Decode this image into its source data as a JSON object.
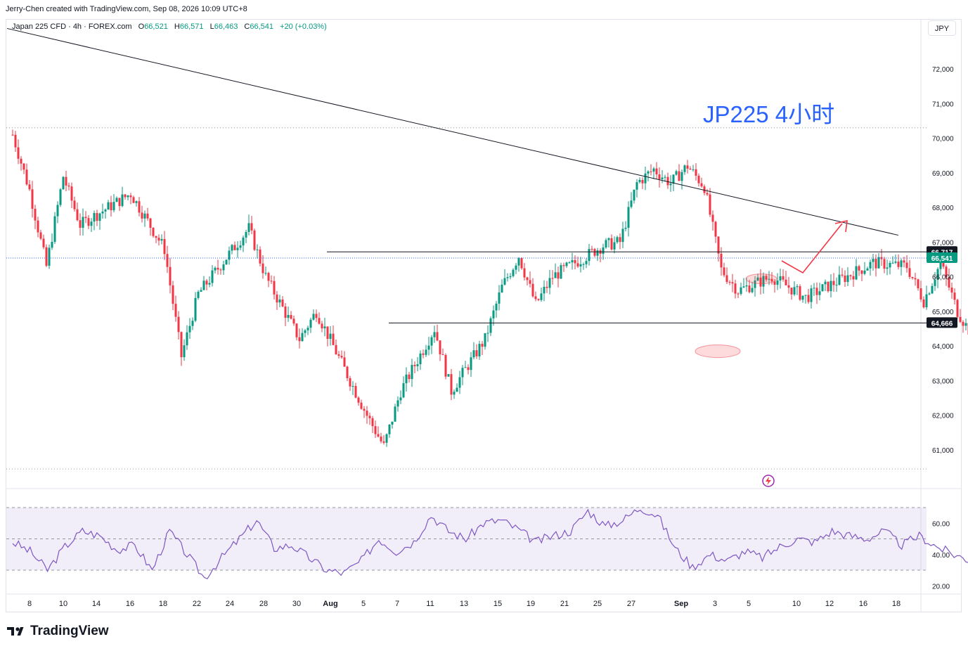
{
  "credit": "Jerry-Chen created with TradingView.com, Sep 08, 2026 10:09 UTC+8",
  "legend": {
    "symbol": "Japan 225 CFD · 4h · FOREX.com",
    "open_label": "O",
    "open": "66,521",
    "high_label": "H",
    "high": "66,571",
    "low_label": "L",
    "low": "66,463",
    "close_label": "C",
    "close": "66,541",
    "change": "+20 (+0.03%)"
  },
  "currency_button": "JPY",
  "annotation": "JP225 4小时",
  "brand": "TradingView",
  "colors": {
    "up": "#089981",
    "down": "#f23645",
    "rsi": "#7e57c2",
    "annotation": "#2962ff",
    "arrow": "#f23645"
  },
  "chart_data": {
    "type": "candlestick",
    "price_axis": {
      "ylim": [
        60300,
        73000
      ],
      "ticks": [
        "72,000",
        "71,000",
        "70,000",
        "69,000",
        "68,000",
        "67,000",
        "66,000",
        "65,000",
        "64,000",
        "63,000",
        "62,000",
        "61,000"
      ]
    },
    "x_ticks": [
      "8",
      "10",
      "14",
      "16",
      "18",
      "22",
      "24",
      "28",
      "30",
      "Aug",
      "5",
      "7",
      "11",
      "13",
      "15",
      "19",
      "21",
      "25",
      "27",
      "Sep",
      "3",
      "5",
      "10",
      "12",
      "16",
      "18"
    ],
    "price_labels": [
      {
        "text": "66,717",
        "value": 66717,
        "kind": "resistance"
      },
      {
        "text": "66,541",
        "value": 66541,
        "kind": "last"
      },
      {
        "text": "64,666",
        "value": 64666,
        "kind": "support"
      }
    ],
    "close_path": [
      [
        "Jul 7",
        70100
      ],
      [
        "Jul 8",
        68500
      ],
      [
        "Jul 9",
        66300
      ],
      [
        "Jul 10",
        68900
      ],
      [
        "Jul 11",
        67500
      ],
      [
        "Jul 14",
        68400
      ],
      [
        "Jul 16",
        66800
      ],
      [
        "Jul 17",
        63700
      ],
      [
        "Jul 18",
        65500
      ],
      [
        "Jul 21",
        67400
      ],
      [
        "Jul 22",
        66000
      ],
      [
        "Jul 24",
        64200
      ],
      [
        "Jul 25",
        65000
      ],
      [
        "Jul 28",
        62000
      ],
      [
        "Jul 29",
        61100
      ],
      [
        "Jul 30",
        62700
      ],
      [
        "Aug 1",
        64500
      ],
      [
        "Aug 2",
        62700
      ],
      [
        "Aug 4",
        64200
      ],
      [
        "Aug 5",
        65700
      ],
      [
        "Aug 6",
        66600
      ],
      [
        "Aug 7",
        65200
      ],
      [
        "Aug 8",
        66000
      ],
      [
        "Aug 11",
        66900
      ],
      [
        "Aug 12",
        67000
      ],
      [
        "Aug 13",
        68700
      ],
      [
        "Aug 14",
        69100
      ],
      [
        "Aug 15",
        68700
      ],
      [
        "Aug 16",
        69200
      ],
      [
        "Aug 17",
        68600
      ],
      [
        "Aug 18",
        66200
      ],
      [
        "Aug 19",
        65600
      ],
      [
        "Aug 21",
        66000
      ],
      [
        "Aug 23",
        65400
      ],
      [
        "Aug 25",
        65900
      ],
      [
        "Aug 27",
        66400
      ],
      [
        "Aug 29",
        66300
      ],
      [
        "Aug 30",
        65300
      ],
      [
        "Aug 31",
        66400
      ],
      [
        "Sep 1",
        65000
      ],
      [
        "Sep 2",
        64200
      ],
      [
        "Sep 3",
        64300
      ],
      [
        "Sep 4",
        64700
      ],
      [
        "Sep 5",
        65800
      ],
      [
        "Sep 6",
        66300
      ],
      [
        "Sep 7",
        66541
      ]
    ],
    "trendline": {
      "from": [
        "Jul 7",
        72600
      ],
      "to": [
        "Aug 27",
        66800
      ]
    },
    "rsi": {
      "ticks": [
        "60.00",
        "40.00",
        "20.00"
      ],
      "band": [
        30,
        70
      ],
      "values": [
        48,
        42,
        30,
        45,
        55,
        52,
        43,
        46,
        30,
        55,
        40,
        25,
        38,
        50,
        62,
        44,
        46,
        38,
        30,
        28,
        36,
        50,
        42,
        48,
        65,
        55,
        50,
        60,
        62,
        56,
        48,
        52,
        55,
        68,
        58,
        62,
        70,
        65,
        44,
        32,
        40,
        36,
        42,
        38,
        45,
        50,
        48,
        55,
        52,
        50,
        55,
        46,
        52,
        45,
        40,
        36,
        38,
        50,
        62,
        66,
        64
      ]
    }
  }
}
